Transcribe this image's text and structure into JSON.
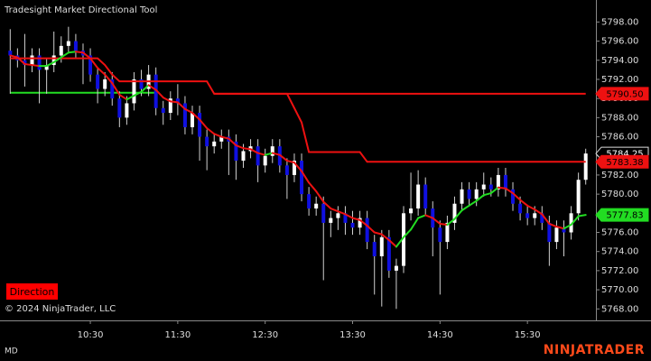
{
  "chart_data": {
    "type": "candlestick",
    "title": "Tradesight Market Directional Tool",
    "copyright": "© 2024 NinjaTrader, LLC",
    "indicator_button": "Direction",
    "status": "MD",
    "logo": "NINJATRADER",
    "x": [
      "09:35",
      "09:40",
      "09:45",
      "09:50",
      "09:55",
      "10:00",
      "10:05",
      "10:10",
      "10:15",
      "10:20",
      "10:25",
      "10:30",
      "10:35",
      "10:40",
      "10:45",
      "10:50",
      "10:55",
      "11:00",
      "11:05",
      "11:10",
      "11:15",
      "11:20",
      "11:25",
      "11:30",
      "11:35",
      "11:40",
      "11:45",
      "11:50",
      "11:55",
      "12:00",
      "12:05",
      "12:10",
      "12:15",
      "12:20",
      "12:25",
      "12:30",
      "12:35",
      "12:40",
      "12:45",
      "12:50",
      "12:55",
      "13:00",
      "13:05",
      "13:10",
      "13:15",
      "13:20",
      "13:25",
      "13:30",
      "13:35",
      "13:40",
      "13:45",
      "13:50",
      "13:55",
      "14:00",
      "14:05",
      "14:10",
      "14:15",
      "14:20",
      "14:25",
      "14:30",
      "14:35",
      "14:40",
      "14:45",
      "14:50",
      "14:55",
      "15:00",
      "15:05",
      "15:10",
      "15:15",
      "15:20",
      "15:25",
      "15:30",
      "15:35",
      "15:40",
      "15:45",
      "15:50",
      "15:55",
      "16:00",
      "16:05",
      "16:10"
    ],
    "open": [
      5795,
      5794.5,
      5794,
      5793.5,
      5794.5,
      5793,
      5793.5,
      5794.5,
      5795.5,
      5796,
      5795,
      5794.5,
      5792.5,
      5791,
      5792,
      5790,
      5788,
      5789.5,
      5792,
      5791,
      5792.5,
      5789,
      5788.5,
      5790,
      5789.5,
      5787,
      5788.5,
      5786,
      5785,
      5785.5,
      5786,
      5785.5,
      5783.5,
      5784.5,
      5785,
      5783,
      5784,
      5785,
      5783,
      5782,
      5783.5,
      5780,
      5778.5,
      5779,
      5777,
      5777.5,
      5778,
      5777,
      5776.5,
      5777.5,
      5775,
      5773.5,
      5775.5,
      5772,
      5772.5,
      5778,
      5778.5,
      5781,
      5778.5,
      5776.5,
      5775,
      5777,
      5779,
      5780.5,
      5779.5,
      5780.5,
      5781,
      5780.5,
      5782,
      5780.5,
      5779,
      5778,
      5777.5,
      5778,
      5777,
      5775,
      5776.5,
      5776,
      5778,
      5781.5
    ],
    "high": [
      5797.25,
      5795.25,
      5796.75,
      5795.25,
      5795.25,
      5794.25,
      5797,
      5796.5,
      5797.5,
      5796.75,
      5795.75,
      5795.25,
      5793.25,
      5792.75,
      5792.75,
      5790.75,
      5790.25,
      5792.75,
      5793,
      5793.5,
      5793.25,
      5789.75,
      5790.75,
      5791.5,
      5790.25,
      5789.25,
      5789.25,
      5786.75,
      5786.25,
      5786.75,
      5786.75,
      5786.25,
      5785.25,
      5785.75,
      5785.75,
      5784.75,
      5785.75,
      5785.75,
      5783.75,
      5784.25,
      5784.25,
      5780.75,
      5779.75,
      5779.75,
      5778.25,
      5778.75,
      5778.75,
      5778.25,
      5778.25,
      5778.25,
      5775.75,
      5776.25,
      5776.25,
      5773.25,
      5778.75,
      5782.25,
      5782.5,
      5781.75,
      5779.25,
      5777.25,
      5777.75,
      5779.75,
      5781.25,
      5781.25,
      5781.25,
      5782.25,
      5781.75,
      5782.75,
      5782.75,
      5781.25,
      5779.75,
      5778.75,
      5778.75,
      5778.75,
      5777.75,
      5777.25,
      5777.25,
      5778.75,
      5782.25,
      5784.75
    ],
    "low": [
      5790.5,
      5793.25,
      5791.25,
      5792.75,
      5789.5,
      5790.5,
      5792.75,
      5793.75,
      5794.75,
      5794.25,
      5791.5,
      5791.75,
      5789.5,
      5790.25,
      5789.25,
      5787,
      5787.25,
      5788.75,
      5790.25,
      5790.25,
      5788.25,
      5787.25,
      5787.75,
      5788.25,
      5786.25,
      5786.25,
      5783.5,
      5782.5,
      5784.25,
      5784.75,
      5782,
      5781.5,
      5782.75,
      5783.75,
      5781.25,
      5782.25,
      5783.25,
      5782.25,
      5779.5,
      5781.25,
      5779.25,
      5777.75,
      5777.75,
      5771,
      5775.5,
      5776.25,
      5775.75,
      5775.75,
      5775.75,
      5774.25,
      5769.5,
      5768.25,
      5771.25,
      5768,
      5771.75,
      5777.25,
      5777.75,
      5777.75,
      5773.5,
      5769.5,
      5774.25,
      5776.25,
      5778.25,
      5778.75,
      5778.75,
      5779.75,
      5779.75,
      5779.75,
      5779.75,
      5778.25,
      5777.25,
      5776.75,
      5776.75,
      5776.25,
      5772.5,
      5774.25,
      5773.5,
      5775.25,
      5777.25,
      5781
    ],
    "close": [
      5794.5,
      5794,
      5793.5,
      5794.5,
      5793,
      5793.5,
      5794.5,
      5795.5,
      5796,
      5795,
      5794.5,
      5792.5,
      5791,
      5792,
      5790,
      5788,
      5789.5,
      5792,
      5791,
      5792.5,
      5789,
      5788.5,
      5790,
      5789.5,
      5787,
      5788.5,
      5786,
      5785,
      5785.5,
      5786,
      5785.5,
      5783.5,
      5784.5,
      5785,
      5783,
      5784,
      5785,
      5783,
      5782,
      5783.5,
      5780,
      5778.5,
      5779,
      5777,
      5777.5,
      5778,
      5777,
      5776.5,
      5777.5,
      5775,
      5773.5,
      5775.5,
      5772,
      5772.5,
      5778,
      5778.5,
      5781,
      5778.5,
      5776.5,
      5775,
      5777,
      5779,
      5780.5,
      5779.5,
      5780.5,
      5781,
      5780.5,
      5782,
      5780.5,
      5779,
      5778,
      5777.5,
      5778,
      5777,
      5775,
      5776.5,
      5776,
      5778,
      5781.5,
      5784.25
    ],
    "up_color": "#ffffff",
    "down_color": "#1010e0",
    "wick_color": "#d0d0d0",
    "ma": [
      5794.5,
      5794.3,
      5793.6,
      5793.5,
      5793.4,
      5793.4,
      5793.8,
      5794.3,
      5794.8,
      5794.9,
      5794.8,
      5794.2,
      5793.2,
      5792.5,
      5791.6,
      5790.4,
      5789.9,
      5790.3,
      5790.7,
      5791.4,
      5790.9,
      5790.1,
      5789.7,
      5789.6,
      5788.9,
      5788.5,
      5787.8,
      5786.9,
      5786.3,
      5786,
      5785.8,
      5785.1,
      5784.8,
      5784.7,
      5784.3,
      5784.1,
      5784.3,
      5784.1,
      5783.5,
      5783.3,
      5782.4,
      5781.2,
      5780.3,
      5779.2,
      5778.5,
      5778.2,
      5777.9,
      5777.5,
      5777.3,
      5776.7,
      5776,
      5775.8,
      5775.2,
      5774.5,
      5775.5,
      5776.3,
      5777.5,
      5777.8,
      5777.5,
      5776.9,
      5776.8,
      5777.4,
      5778.3,
      5778.8,
      5779.3,
      5779.9,
      5780.1,
      5780.7,
      5780.6,
      5780.1,
      5779.4,
      5778.8,
      5778.4,
      5777.9,
      5776.9,
      5776.6,
      5776.4,
      5776.8,
      5777.7,
      5777.83
    ],
    "ma_up_color": "#22dd22",
    "ma_down_color": "#ee1111",
    "stop": [
      5794.2,
      5794.2,
      5794.2,
      5794.2,
      5794.2,
      5794.2,
      5794.2,
      5794.2,
      5794.2,
      5794.2,
      5794.2,
      5794.2,
      5794.2,
      5793.5,
      5792.5,
      5791.8,
      5791.8,
      5791.8,
      5791.8,
      5791.8,
      5791.8,
      5791.8,
      5791.8,
      5791.8,
      5791.8,
      5791.8,
      5791.8,
      5791.8,
      5790.5,
      5790.5,
      5790.5,
      5790.5,
      5790.5,
      5790.5,
      5790.5,
      5790.5,
      5790.5,
      5790.5,
      5790.5,
      5789,
      5787.5,
      5784.4,
      5784.4,
      5784.4,
      5784.4,
      5784.4,
      5784.4,
      5784.4,
      5784.4,
      5783.38,
      5783.38,
      5783.38,
      5783.38,
      5783.38,
      5783.38,
      5783.38,
      5783.38,
      5783.38,
      5783.38,
      5783.38,
      5783.38,
      5783.38,
      5783.38,
      5783.38,
      5783.38,
      5783.38,
      5783.38,
      5783.38,
      5783.38,
      5783.38,
      5783.38,
      5783.38,
      5783.38,
      5783.38,
      5783.38,
      5783.38,
      5783.38,
      5783.38,
      5783.38,
      5783.38
    ],
    "stop_color": "#ee1111",
    "levels": [
      {
        "value": 5790.6,
        "start": "09:35",
        "end": "11:15",
        "color": "#22dd22"
      },
      {
        "value": 5790.5,
        "start": "11:55",
        "end": "16:10",
        "color": "#ee1111"
      }
    ],
    "markers": [
      {
        "value": 5790.5,
        "label": "5790.50",
        "color": "#ee1111"
      },
      {
        "value": 5784.25,
        "label": "5784.25",
        "color": "#000000"
      },
      {
        "value": 5783.38,
        "label": "5783.38",
        "color": "#ee1111"
      },
      {
        "value": 5777.83,
        "label": "5777.83",
        "color": "#22dd22"
      }
    ],
    "ylim": [
      5766.8,
      5800.3
    ],
    "yticks": [
      {
        "value": 5768,
        "label": "5768.00"
      },
      {
        "value": 5770,
        "label": "5770.00"
      },
      {
        "value": 5772,
        "label": "5772.00"
      },
      {
        "value": 5774,
        "label": "5774.00"
      },
      {
        "value": 5776,
        "label": "5776.00"
      },
      {
        "value": 5778,
        "label": "5778.00"
      },
      {
        "value": 5780,
        "label": "5780.00"
      },
      {
        "value": 5782,
        "label": "5782.00"
      },
      {
        "value": 5784,
        "label": "5784.00"
      },
      {
        "value": 5786,
        "label": "5786.00"
      },
      {
        "value": 5788,
        "label": "5788.00"
      },
      {
        "value": 5790,
        "label": "5790.00"
      },
      {
        "value": 5792,
        "label": "5792.00"
      },
      {
        "value": 5794,
        "label": "5794.00"
      },
      {
        "value": 5796,
        "label": "5796.00"
      },
      {
        "value": 5798,
        "label": "5798.00"
      }
    ],
    "xlim": [
      "09:28",
      "16:17"
    ],
    "xticks": [
      "10:30",
      "11:30",
      "12:30",
      "13:30",
      "14:30",
      "15:30"
    ]
  }
}
